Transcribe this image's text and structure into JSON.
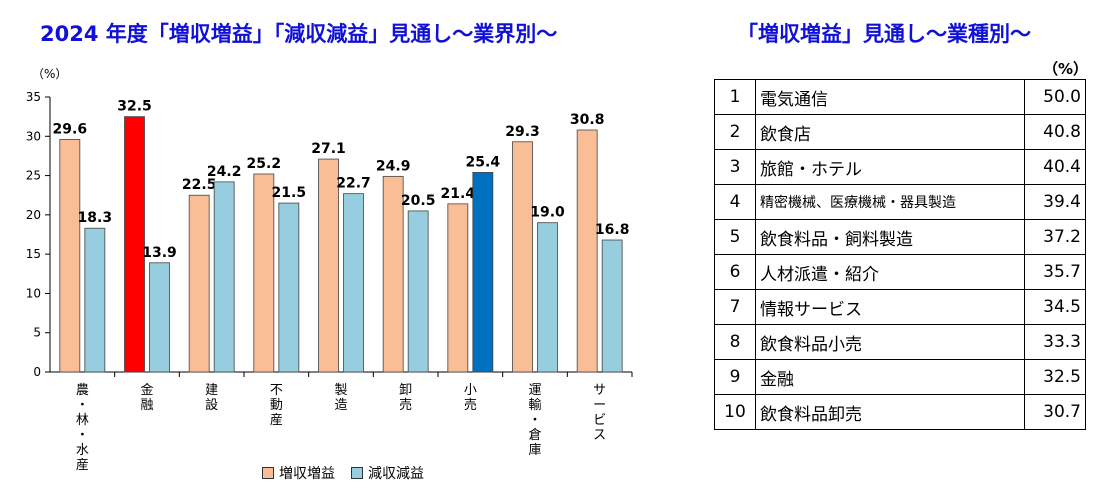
{
  "chart_title": "2024 年度「増収増益」「減収減益」見通し～業界別～",
  "table_title": "「増収増益」見通し～業種別～",
  "table_unit": "（%）",
  "colors": {
    "increase": "#F9BE95",
    "decrease": "#96CDDF",
    "highlight_increase": "#FF0000",
    "highlight_decrease": "#0070C0",
    "title": "#1010D8"
  },
  "chart_data": {
    "type": "bar",
    "unit_label": "（%）",
    "categories": [
      "農・林・水産",
      "金融",
      "建設",
      "不動産",
      "製造",
      "卸売",
      "小売",
      "運輸・倉庫",
      "サービス"
    ],
    "series": [
      {
        "name": "増収増益",
        "values": [
          29.6,
          32.5,
          22.5,
          25.2,
          27.1,
          24.9,
          21.4,
          29.3,
          30.8
        ]
      },
      {
        "name": "減収減益",
        "values": [
          18.3,
          13.9,
          24.2,
          21.5,
          22.7,
          20.5,
          25.4,
          19.0,
          16.8
        ]
      }
    ],
    "highlight": {
      "increase_index": 1,
      "decrease_index": 6
    },
    "ylim": [
      0,
      35
    ],
    "yticks": [
      0,
      5,
      10,
      15,
      20,
      25,
      30,
      35
    ],
    "legend_position": "bottom"
  },
  "ranking": [
    {
      "rank": "1",
      "name": "電気通信",
      "value": "50.0"
    },
    {
      "rank": "2",
      "name": "飲食店",
      "value": "40.8"
    },
    {
      "rank": "3",
      "name": "旅館・ホテル",
      "value": "40.4"
    },
    {
      "rank": "4",
      "name": "精密機械、医療機械・器具製造",
      "value": "39.4"
    },
    {
      "rank": "5",
      "name": "飲食料品・飼料製造",
      "value": "37.2"
    },
    {
      "rank": "6",
      "name": "人材派遣・紹介",
      "value": "35.7"
    },
    {
      "rank": "7",
      "name": "情報サービス",
      "value": "34.5"
    },
    {
      "rank": "8",
      "name": "飲食料品小売",
      "value": "33.3"
    },
    {
      "rank": "9",
      "name": "金融",
      "value": "32.5"
    },
    {
      "rank": "10",
      "name": "飲食料品卸売",
      "value": "30.7"
    }
  ]
}
